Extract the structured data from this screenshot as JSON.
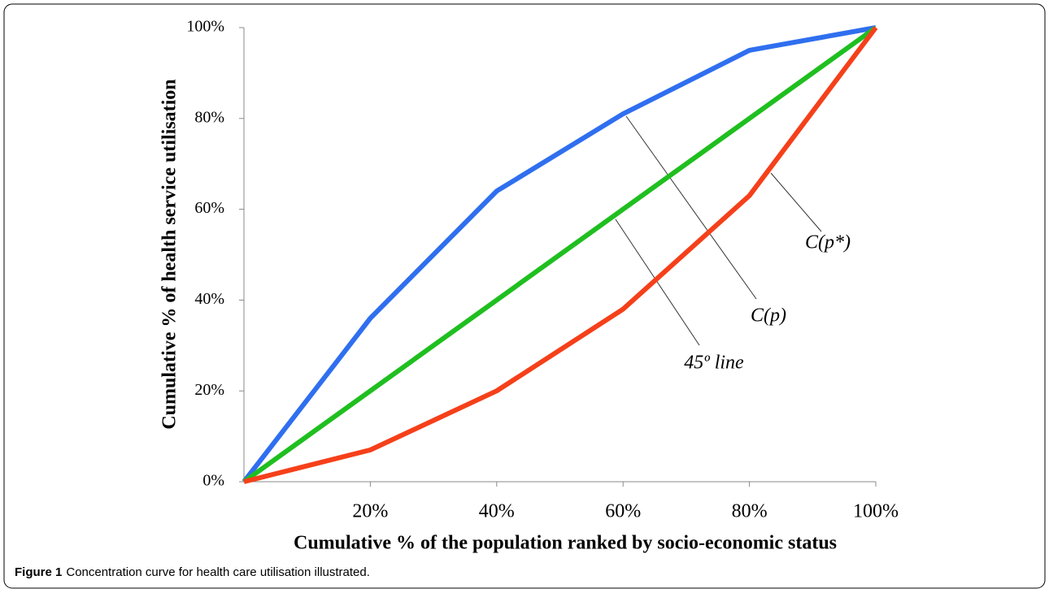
{
  "chart_data": {
    "type": "line",
    "xlabel": "Cumulative % of the population ranked by socio-economic status",
    "ylabel": "Cumulative % of health service utilisation",
    "x": [
      0,
      20,
      40,
      60,
      80,
      100
    ],
    "xlim": [
      0,
      100
    ],
    "ylim": [
      0,
      100
    ],
    "xticks": [
      {
        "value": 20,
        "label": "20%"
      },
      {
        "value": 40,
        "label": "40%"
      },
      {
        "value": 60,
        "label": "60%"
      },
      {
        "value": 80,
        "label": "80%"
      },
      {
        "value": 100,
        "label": "100%"
      }
    ],
    "yticks": [
      {
        "value": 0,
        "label": "0%"
      },
      {
        "value": 20,
        "label": "20%"
      },
      {
        "value": 40,
        "label": "40%"
      },
      {
        "value": 60,
        "label": "60%"
      },
      {
        "value": 80,
        "label": "80%"
      },
      {
        "value": 100,
        "label": "100%"
      }
    ],
    "grid": false,
    "series": [
      {
        "name": "C(p)",
        "color": "#2f6fef",
        "values": [
          0,
          36,
          64,
          81,
          95,
          100
        ]
      },
      {
        "name": "45º line",
        "color": "#1fbf1f",
        "values": [
          0,
          20,
          40,
          60,
          80,
          100
        ]
      },
      {
        "name": "C(p*)",
        "color": "#f5401a",
        "values": [
          0,
          7,
          20,
          38,
          63,
          100
        ]
      }
    ]
  },
  "caption": {
    "label": "Figure 1",
    "text": "Concentration curve for health care utilisation illustrated."
  }
}
